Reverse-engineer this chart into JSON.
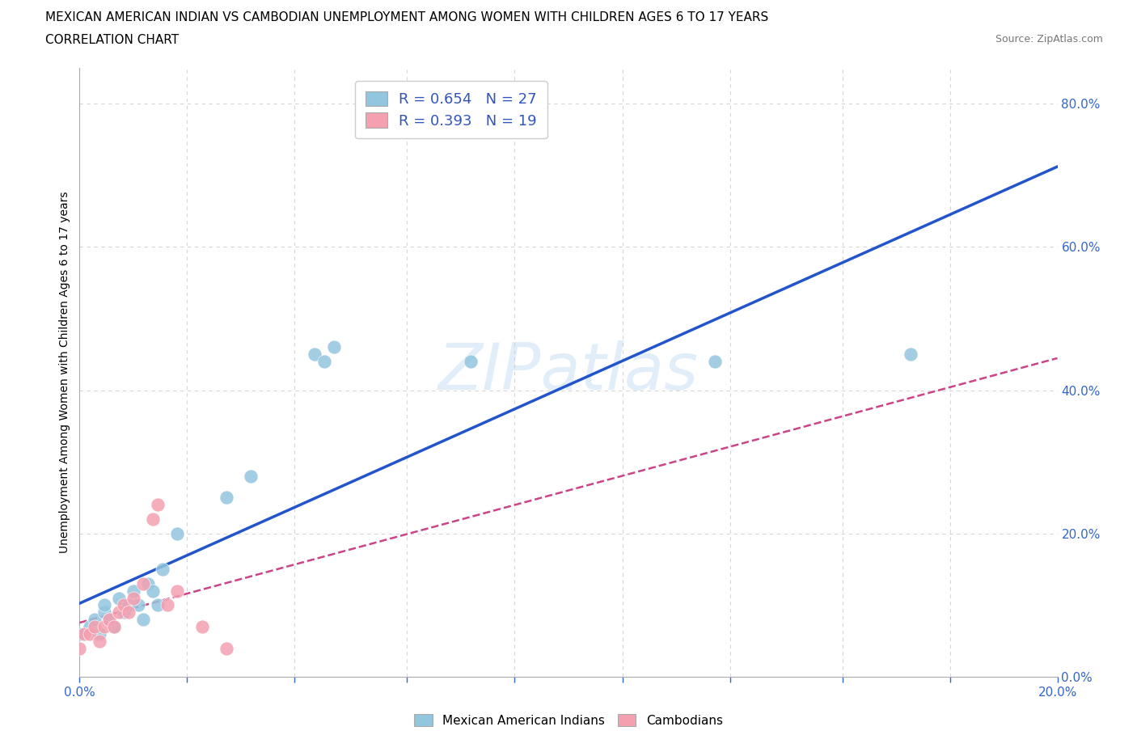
{
  "title_line1": "MEXICAN AMERICAN INDIAN VS CAMBODIAN UNEMPLOYMENT AMONG WOMEN WITH CHILDREN AGES 6 TO 17 YEARS",
  "title_line2": "CORRELATION CHART",
  "source_text": "Source: ZipAtlas.com",
  "ylabel": "Unemployment Among Women with Children Ages 6 to 17 years",
  "xlim": [
    0.0,
    0.2
  ],
  "ylim": [
    0.0,
    0.85
  ],
  "ytick_values": [
    0.0,
    0.2,
    0.4,
    0.6,
    0.8
  ],
  "xtick_values": [
    0.0,
    0.022,
    0.044,
    0.067,
    0.089,
    0.111,
    0.133,
    0.156,
    0.178,
    0.2
  ],
  "blue_color": "#92C5DE",
  "pink_color": "#F4A0B0",
  "blue_line_color": "#2255CC",
  "pink_line_color": "#CC4488",
  "grid_color": "#CCCCCC",
  "R_blue": 0.654,
  "N_blue": 27,
  "R_pink": 0.393,
  "N_pink": 19,
  "mexican_x": [
    0.0,
    0.002,
    0.003,
    0.004,
    0.005,
    0.005,
    0.006,
    0.007,
    0.008,
    0.009,
    0.01,
    0.011,
    0.012,
    0.013,
    0.014,
    0.015,
    0.016,
    0.017,
    0.02,
    0.03,
    0.035,
    0.048,
    0.05,
    0.052,
    0.08,
    0.13,
    0.17
  ],
  "mexican_y": [
    0.06,
    0.07,
    0.08,
    0.06,
    0.09,
    0.1,
    0.08,
    0.07,
    0.11,
    0.09,
    0.1,
    0.12,
    0.1,
    0.08,
    0.13,
    0.12,
    0.1,
    0.15,
    0.2,
    0.25,
    0.28,
    0.45,
    0.44,
    0.46,
    0.44,
    0.44,
    0.45
  ],
  "cambodian_x": [
    0.0,
    0.001,
    0.002,
    0.003,
    0.004,
    0.005,
    0.006,
    0.007,
    0.008,
    0.009,
    0.01,
    0.011,
    0.013,
    0.015,
    0.016,
    0.018,
    0.02,
    0.025,
    0.03
  ],
  "cambodian_y": [
    0.04,
    0.06,
    0.06,
    0.07,
    0.05,
    0.07,
    0.08,
    0.07,
    0.09,
    0.1,
    0.09,
    0.11,
    0.13,
    0.22,
    0.24,
    0.1,
    0.12,
    0.07,
    0.04
  ]
}
